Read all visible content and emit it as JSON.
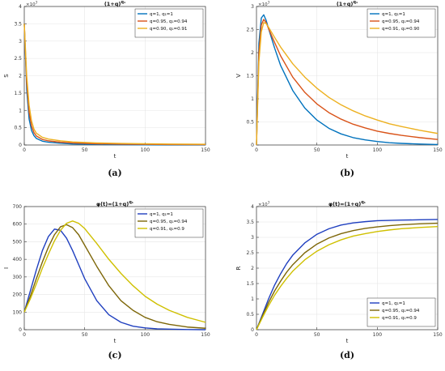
{
  "chart_data": [
    {
      "type": "line",
      "caption": "(a)",
      "title": "(1+q)^{q_1}",
      "xlabel": "t",
      "ylabel": "S",
      "exponent_label": "×10^7",
      "xlim": [
        0,
        150
      ],
      "ylim": [
        0,
        4
      ],
      "xticks": [
        "0",
        "50",
        "100",
        "150"
      ],
      "yticks": [
        "0",
        "0.5",
        "1",
        "1.5",
        "2",
        "2.5",
        "3",
        "3.5",
        "4"
      ],
      "legend_position": "top-right",
      "series": [
        {
          "name": "q=1, q₁=1",
          "color": "#0072bd",
          "x": [
            0,
            2,
            4,
            6,
            8,
            10,
            15,
            20,
            30,
            40,
            60,
            80,
            100,
            120,
            150
          ],
          "y": [
            3.5,
            1.6,
            0.75,
            0.42,
            0.27,
            0.19,
            0.11,
            0.08,
            0.05,
            0.03,
            0.015,
            0.01,
            0.005,
            0.003,
            0.002
          ]
        },
        {
          "name": "q=0.95, q₁=0.94",
          "color": "#d95319",
          "x": [
            0,
            2,
            4,
            6,
            8,
            10,
            15,
            20,
            30,
            40,
            60,
            80,
            100,
            120,
            150
          ],
          "y": [
            3.5,
            1.8,
            0.95,
            0.55,
            0.36,
            0.26,
            0.16,
            0.12,
            0.08,
            0.06,
            0.035,
            0.025,
            0.018,
            0.014,
            0.01
          ]
        },
        {
          "name": "q=0.90, q₁=0.91",
          "color": "#edb120",
          "x": [
            0,
            2,
            4,
            6,
            8,
            10,
            15,
            20,
            30,
            40,
            60,
            80,
            100,
            120,
            150
          ],
          "y": [
            3.5,
            2.0,
            1.15,
            0.7,
            0.46,
            0.34,
            0.22,
            0.17,
            0.12,
            0.09,
            0.06,
            0.045,
            0.035,
            0.028,
            0.022
          ]
        }
      ]
    },
    {
      "type": "line",
      "caption": "(b)",
      "title": "(1+q)^{q_1}",
      "xlabel": "t",
      "ylabel": "V",
      "exponent_label": "×10^7",
      "xlim": [
        0,
        150
      ],
      "ylim": [
        0,
        3
      ],
      "xticks": [
        "0",
        "50",
        "100",
        "150"
      ],
      "yticks": [
        "0",
        "0.5",
        "1",
        "1.5",
        "2",
        "2.5",
        "3"
      ],
      "legend_position": "top-right",
      "series": [
        {
          "name": "q=1, q₁=1",
          "color": "#0072bd",
          "x": [
            0,
            2,
            4,
            6,
            8,
            10,
            15,
            20,
            30,
            40,
            50,
            60,
            70,
            80,
            90,
            100,
            110,
            120,
            135,
            150
          ],
          "y": [
            0,
            2.2,
            2.75,
            2.82,
            2.7,
            2.52,
            2.1,
            1.72,
            1.18,
            0.8,
            0.54,
            0.36,
            0.24,
            0.16,
            0.11,
            0.075,
            0.05,
            0.035,
            0.02,
            0.01
          ]
        },
        {
          "name": "q=0.95, q₁=0.94",
          "color": "#d95319",
          "x": [
            0,
            2,
            4,
            6,
            8,
            10,
            15,
            20,
            30,
            40,
            50,
            60,
            70,
            80,
            90,
            100,
            110,
            120,
            135,
            150
          ],
          "y": [
            0,
            2.0,
            2.6,
            2.72,
            2.65,
            2.52,
            2.22,
            1.93,
            1.47,
            1.14,
            0.89,
            0.7,
            0.56,
            0.45,
            0.37,
            0.3,
            0.25,
            0.21,
            0.16,
            0.12
          ]
        },
        {
          "name": "q=0.91, q₁=0.90",
          "color": "#edb120",
          "x": [
            0,
            2,
            4,
            6,
            8,
            10,
            15,
            20,
            30,
            40,
            50,
            60,
            70,
            80,
            90,
            100,
            110,
            120,
            135,
            150
          ],
          "y": [
            0,
            1.8,
            2.45,
            2.65,
            2.63,
            2.55,
            2.33,
            2.12,
            1.76,
            1.47,
            1.23,
            1.03,
            0.87,
            0.74,
            0.63,
            0.54,
            0.46,
            0.4,
            0.32,
            0.25
          ]
        }
      ]
    },
    {
      "type": "line",
      "caption": "(c)",
      "title": "φ(t)=(1+q)^{q_1}",
      "xlabel": "t",
      "ylabel": "I",
      "exponent_label": "",
      "xlim": [
        0,
        150
      ],
      "ylim": [
        0,
        700
      ],
      "xticks": [
        "0",
        "50",
        "100",
        "150"
      ],
      "yticks": [
        "0",
        "100",
        "200",
        "300",
        "400",
        "500",
        "600",
        "700"
      ],
      "legend_position": "top-right",
      "series": [
        {
          "name": "q=1, q₁=1",
          "color": "#1f3fbf",
          "x": [
            0,
            5,
            10,
            15,
            20,
            25,
            30,
            35,
            40,
            45,
            50,
            60,
            70,
            80,
            90,
            100,
            110,
            120,
            135,
            150
          ],
          "y": [
            100,
            220,
            340,
            450,
            530,
            572,
            565,
            520,
            450,
            370,
            290,
            165,
            85,
            42,
            20,
            10,
            5,
            3,
            1,
            0
          ]
        },
        {
          "name": "q=0.95, q₁=0.94",
          "color": "#7d6608",
          "x": [
            0,
            5,
            10,
            15,
            20,
            25,
            30,
            35,
            40,
            45,
            50,
            60,
            70,
            80,
            90,
            100,
            110,
            120,
            135,
            150
          ],
          "y": [
            100,
            190,
            290,
            385,
            470,
            540,
            585,
            597,
            580,
            540,
            480,
            360,
            250,
            165,
            110,
            70,
            45,
            30,
            15,
            8
          ]
        },
        {
          "name": "q=0.91, q₁=0.9",
          "color": "#cfc000",
          "x": [
            0,
            5,
            10,
            15,
            20,
            25,
            30,
            35,
            40,
            45,
            50,
            60,
            70,
            80,
            90,
            100,
            110,
            120,
            135,
            150
          ],
          "y": [
            100,
            175,
            260,
            350,
            430,
            505,
            565,
            605,
            618,
            605,
            575,
            490,
            400,
            320,
            250,
            190,
            145,
            110,
            70,
            42
          ]
        }
      ]
    },
    {
      "type": "line",
      "caption": "(d)",
      "title": "φ(t)=(1+q)^{q_1}",
      "xlabel": "t",
      "ylabel": "R",
      "exponent_label": "×10^7",
      "xlim": [
        0,
        150
      ],
      "ylim": [
        0,
        4
      ],
      "xticks": [
        "0",
        "50",
        "100",
        "150"
      ],
      "yticks": [
        "0",
        "0.5",
        "1",
        "1.5",
        "2",
        "2.5",
        "3",
        "3.5",
        "4"
      ],
      "legend_position": "bottom-right",
      "series": [
        {
          "name": "q=1, q₁=1",
          "color": "#1f3fbf",
          "x": [
            0,
            5,
            10,
            15,
            20,
            25,
            30,
            40,
            50,
            60,
            70,
            80,
            90,
            100,
            110,
            120,
            135,
            150
          ],
          "y": [
            0,
            0.5,
            1.0,
            1.45,
            1.82,
            2.15,
            2.42,
            2.82,
            3.1,
            3.28,
            3.4,
            3.47,
            3.51,
            3.54,
            3.55,
            3.56,
            3.57,
            3.58
          ]
        },
        {
          "name": "q=0.95, q₁=0.94",
          "color": "#7d6608",
          "x": [
            0,
            5,
            10,
            15,
            20,
            25,
            30,
            40,
            50,
            60,
            70,
            80,
            90,
            100,
            110,
            120,
            135,
            150
          ],
          "y": [
            0,
            0.45,
            0.88,
            1.26,
            1.58,
            1.87,
            2.11,
            2.5,
            2.78,
            2.98,
            3.12,
            3.22,
            3.29,
            3.34,
            3.38,
            3.41,
            3.44,
            3.46
          ]
        },
        {
          "name": "q=0.91, q₁=0.9",
          "color": "#cfc000",
          "x": [
            0,
            5,
            10,
            15,
            20,
            25,
            30,
            40,
            50,
            60,
            70,
            80,
            90,
            100,
            110,
            120,
            135,
            150
          ],
          "y": [
            0,
            0.4,
            0.78,
            1.12,
            1.41,
            1.67,
            1.9,
            2.27,
            2.55,
            2.76,
            2.92,
            3.04,
            3.12,
            3.19,
            3.24,
            3.28,
            3.32,
            3.35
          ]
        }
      ]
    }
  ]
}
